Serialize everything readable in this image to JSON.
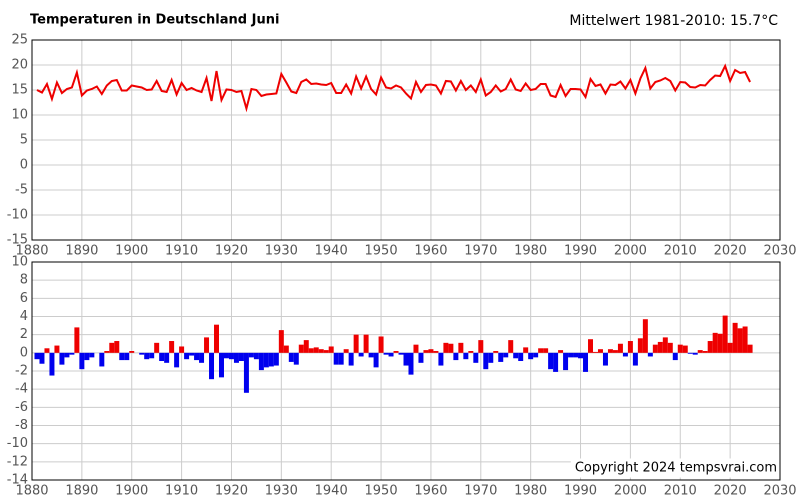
{
  "chart_data": [
    {
      "type": "line",
      "title": "Temperaturen in Deutschland Juni",
      "annotation": "Mittelwert 1981-2010: 15.7°C",
      "x": [
        1881,
        1882,
        1883,
        1884,
        1885,
        1886,
        1887,
        1888,
        1889,
        1890,
        1891,
        1892,
        1893,
        1894,
        1895,
        1896,
        1897,
        1898,
        1899,
        1900,
        1901,
        1902,
        1903,
        1904,
        1905,
        1906,
        1907,
        1908,
        1909,
        1910,
        1911,
        1912,
        1913,
        1914,
        1915,
        1916,
        1917,
        1918,
        1919,
        1920,
        1921,
        1922,
        1923,
        1924,
        1925,
        1926,
        1927,
        1928,
        1929,
        1930,
        1931,
        1932,
        1933,
        1934,
        1935,
        1936,
        1937,
        1938,
        1939,
        1940,
        1941,
        1942,
        1943,
        1944,
        1945,
        1946,
        1947,
        1948,
        1949,
        1950,
        1951,
        1952,
        1953,
        1954,
        1955,
        1956,
        1957,
        1958,
        1959,
        1960,
        1961,
        1962,
        1963,
        1964,
        1965,
        1966,
        1967,
        1968,
        1969,
        1970,
        1971,
        1972,
        1973,
        1974,
        1975,
        1976,
        1977,
        1978,
        1979,
        1980,
        1981,
        1982,
        1983,
        1984,
        1985,
        1986,
        1987,
        1988,
        1989,
        1990,
        1991,
        1992,
        1993,
        1994,
        1995,
        1996,
        1997,
        1998,
        1999,
        2000,
        2001,
        2002,
        2003,
        2004,
        2005,
        2006,
        2007,
        2008,
        2009,
        2010,
        2011,
        2012,
        2013,
        2014,
        2015,
        2016,
        2017,
        2018,
        2019,
        2020,
        2021,
        2022,
        2023,
        2024
      ],
      "values": [
        15.0,
        14.5,
        16.2,
        13.2,
        16.5,
        14.4,
        15.2,
        15.5,
        18.5,
        13.9,
        14.9,
        15.2,
        15.7,
        14.2,
        15.9,
        16.8,
        17.0,
        14.9,
        14.9,
        15.9,
        15.7,
        15.5,
        15.0,
        15.1,
        16.8,
        14.8,
        14.6,
        17.0,
        14.1,
        16.4,
        15.0,
        15.4,
        14.9,
        14.6,
        17.4,
        12.8,
        18.8,
        13.0,
        15.1,
        15.0,
        14.6,
        14.8,
        11.3,
        15.2,
        15.0,
        13.8,
        14.1,
        14.2,
        14.3,
        18.2,
        16.5,
        14.7,
        14.4,
        16.6,
        17.1,
        16.2,
        16.3,
        16.1,
        16.0,
        16.4,
        14.4,
        14.4,
        16.1,
        14.3,
        17.7,
        15.3,
        17.7,
        15.2,
        14.1,
        17.5,
        15.5,
        15.3,
        15.9,
        15.5,
        14.3,
        13.3,
        16.6,
        14.6,
        16.0,
        16.1,
        15.9,
        14.3,
        16.8,
        16.7,
        14.9,
        16.8,
        15.0,
        15.9,
        14.6,
        17.1,
        13.9,
        14.6,
        15.9,
        14.7,
        15.2,
        17.1,
        15.1,
        14.8,
        16.3,
        15.0,
        15.2,
        16.2,
        16.2,
        13.9,
        13.6,
        16.0,
        13.8,
        15.2,
        15.2,
        15.1,
        13.6,
        17.2,
        15.8,
        16.1,
        14.3,
        16.1,
        16.0,
        16.7,
        15.3,
        17.0,
        14.3,
        17.3,
        19.4,
        15.3,
        16.6,
        16.9,
        17.4,
        16.8,
        14.9,
        16.6,
        16.5,
        15.6,
        15.5,
        16.0,
        15.9,
        17.0,
        17.9,
        17.8,
        19.8,
        16.8,
        19.0,
        18.4,
        18.6,
        16.6
      ],
      "color": "#ee0000",
      "xlim": [
        1880,
        2030
      ],
      "xticks": [
        1880,
        1890,
        1900,
        1910,
        1920,
        1930,
        1940,
        1950,
        1960,
        1970,
        1980,
        1990,
        2000,
        2010,
        2020,
        2030
      ],
      "ylim": [
        -15,
        25
      ],
      "yticks": [
        -15,
        -10,
        -5,
        0,
        5,
        10,
        15,
        20,
        25
      ],
      "grid": true
    },
    {
      "type": "bar",
      "annotation": "Copyright 2024 tempsvrai.com",
      "x": [
        1881,
        1882,
        1883,
        1884,
        1885,
        1886,
        1887,
        1888,
        1889,
        1890,
        1891,
        1892,
        1893,
        1894,
        1895,
        1896,
        1897,
        1898,
        1899,
        1900,
        1901,
        1902,
        1903,
        1904,
        1905,
        1906,
        1907,
        1908,
        1909,
        1910,
        1911,
        1912,
        1913,
        1914,
        1915,
        1916,
        1917,
        1918,
        1919,
        1920,
        1921,
        1922,
        1923,
        1924,
        1925,
        1926,
        1927,
        1928,
        1929,
        1930,
        1931,
        1932,
        1933,
        1934,
        1935,
        1936,
        1937,
        1938,
        1939,
        1940,
        1941,
        1942,
        1943,
        1944,
        1945,
        1946,
        1947,
        1948,
        1949,
        1950,
        1951,
        1952,
        1953,
        1954,
        1955,
        1956,
        1957,
        1958,
        1959,
        1960,
        1961,
        1962,
        1963,
        1964,
        1965,
        1966,
        1967,
        1968,
        1969,
        1970,
        1971,
        1972,
        1973,
        1974,
        1975,
        1976,
        1977,
        1978,
        1979,
        1980,
        1981,
        1982,
        1983,
        1984,
        1985,
        1986,
        1987,
        1988,
        1989,
        1990,
        1991,
        1992,
        1993,
        1994,
        1995,
        1996,
        1997,
        1998,
        1999,
        2000,
        2001,
        2002,
        2003,
        2004,
        2005,
        2006,
        2007,
        2008,
        2009,
        2010,
        2011,
        2012,
        2013,
        2014,
        2015,
        2016,
        2017,
        2018,
        2019,
        2020,
        2021,
        2022,
        2023,
        2024
      ],
      "values": [
        -0.7,
        -1.2,
        0.5,
        -2.5,
        0.8,
        -1.3,
        -0.5,
        -0.2,
        2.8,
        -1.8,
        -0.8,
        -0.5,
        0.0,
        -1.5,
        0.2,
        1.1,
        1.3,
        -0.8,
        -0.8,
        0.2,
        0.0,
        -0.2,
        -0.7,
        -0.6,
        1.1,
        -0.9,
        -1.1,
        1.3,
        -1.6,
        0.7,
        -0.7,
        -0.3,
        -0.8,
        -1.1,
        1.7,
        -2.9,
        3.1,
        -2.7,
        -0.6,
        -0.7,
        -1.1,
        -0.9,
        -4.4,
        -0.5,
        -0.7,
        -1.9,
        -1.6,
        -1.5,
        -1.4,
        2.5,
        0.8,
        -1.0,
        -1.3,
        0.9,
        1.4,
        0.5,
        0.6,
        0.4,
        0.3,
        0.7,
        -1.3,
        -1.3,
        0.4,
        -1.4,
        2.0,
        -0.4,
        2.0,
        -0.5,
        -1.6,
        1.8,
        -0.2,
        -0.4,
        0.2,
        -0.2,
        -1.4,
        -2.4,
        0.9,
        -1.1,
        0.3,
        0.4,
        0.2,
        -1.4,
        1.1,
        1.0,
        -0.8,
        1.1,
        -0.7,
        0.2,
        -1.1,
        1.4,
        -1.8,
        -1.1,
        0.2,
        -1.0,
        -0.5,
        1.4,
        -0.6,
        -0.9,
        0.6,
        -0.7,
        -0.5,
        0.5,
        0.5,
        -1.8,
        -2.1,
        0.3,
        -1.9,
        -0.5,
        -0.5,
        -0.6,
        -2.1,
        1.5,
        0.1,
        0.4,
        -1.4,
        0.4,
        0.3,
        1.0,
        -0.4,
        1.3,
        -1.4,
        1.6,
        3.7,
        -0.4,
        0.9,
        1.2,
        1.7,
        1.1,
        -0.8,
        0.9,
        0.8,
        -0.1,
        -0.2,
        0.3,
        0.2,
        1.3,
        2.2,
        2.1,
        4.1,
        1.1,
        3.3,
        2.7,
        2.9,
        0.9
      ],
      "positive_color": "#ee0000",
      "negative_color": "#0000ee",
      "xlim": [
        1880,
        2030
      ],
      "xticks": [
        1880,
        1890,
        1900,
        1910,
        1920,
        1930,
        1940,
        1950,
        1960,
        1970,
        1980,
        1990,
        2000,
        2010,
        2020,
        2030
      ],
      "ylim": [
        -14,
        10
      ],
      "yticks": [
        -14,
        -12,
        -10,
        -8,
        -6,
        -4,
        -2,
        0,
        2,
        4,
        6,
        8,
        10
      ],
      "grid": true
    }
  ]
}
